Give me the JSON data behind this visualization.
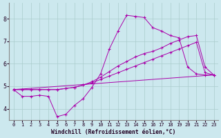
{
  "xlabel": "Windchill (Refroidissement éolien,°C)",
  "background_color": "#cce8ee",
  "grid_color": "#aacccc",
  "line_color": "#aa00aa",
  "xlim": [
    -0.5,
    23.5
  ],
  "ylim": [
    3.5,
    8.7
  ],
  "yticks": [
    4,
    5,
    6,
    7,
    8
  ],
  "xticks": [
    0,
    1,
    2,
    3,
    4,
    5,
    6,
    7,
    8,
    9,
    10,
    11,
    12,
    13,
    14,
    15,
    16,
    17,
    18,
    19,
    20,
    21,
    22,
    23
  ],
  "series": [
    {
      "x": [
        0,
        1,
        2,
        3,
        4,
        5,
        6,
        7,
        8,
        9,
        10,
        11,
        12,
        13,
        14,
        15,
        16,
        17,
        18,
        19,
        20,
        21,
        22,
        23
      ],
      "y": [
        4.85,
        4.55,
        4.55,
        4.6,
        4.55,
        3.65,
        3.75,
        4.15,
        4.45,
        4.95,
        5.55,
        6.65,
        7.45,
        8.15,
        8.1,
        8.05,
        7.6,
        7.45,
        7.25,
        7.15,
        5.85,
        5.55,
        5.5,
        5.5
      ]
    },
    {
      "x": [
        0,
        1,
        2,
        3,
        4,
        5,
        6,
        7,
        8,
        9,
        10,
        11,
        12,
        13,
        14,
        15,
        16,
        17,
        18,
        19,
        20,
        21,
        22,
        23
      ],
      "y": [
        4.85,
        4.85,
        4.85,
        4.85,
        4.85,
        4.85,
        4.9,
        4.95,
        5.05,
        5.15,
        5.3,
        5.45,
        5.6,
        5.75,
        5.9,
        6.05,
        6.2,
        6.35,
        6.5,
        6.65,
        6.8,
        6.95,
        5.6,
        5.5
      ]
    },
    {
      "x": [
        0,
        1,
        2,
        3,
        4,
        5,
        6,
        7,
        8,
        9,
        10,
        11,
        12,
        13,
        14,
        15,
        16,
        17,
        18,
        19,
        20,
        21,
        22,
        23
      ],
      "y": [
        4.85,
        4.85,
        4.85,
        4.85,
        4.85,
        4.85,
        4.9,
        4.95,
        5.05,
        5.2,
        5.4,
        5.65,
        5.9,
        6.1,
        6.3,
        6.45,
        6.55,
        6.7,
        6.9,
        7.05,
        7.2,
        7.25,
        5.85,
        5.5
      ]
    },
    {
      "x": [
        0,
        23
      ],
      "y": [
        4.85,
        5.5
      ]
    }
  ]
}
